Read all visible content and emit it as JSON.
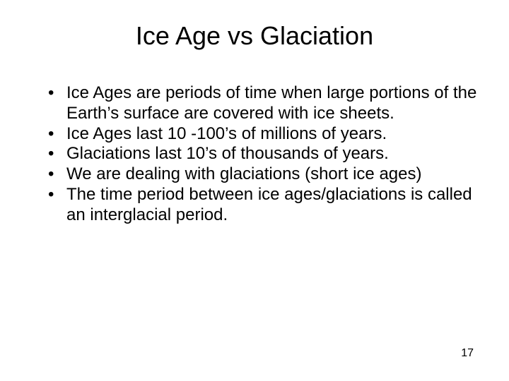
{
  "slide": {
    "title": "Ice Age vs Glaciation",
    "bullets": [
      "Ice Ages are periods of time when large portions of the Earth’s surface are covered with ice sheets.",
      "Ice Ages last 10 -100’s of millions of years.",
      "Glaciations last 10’s of thousands of years.",
      "We are dealing with glaciations (short ice ages)",
      "The time period between ice ages/glaciations is called an interglacial period."
    ],
    "page_number": "17",
    "colors": {
      "background": "#ffffff",
      "text": "#000000"
    },
    "typography": {
      "title_fontsize": 36,
      "body_fontsize": 24,
      "pagenum_fontsize": 16,
      "font_family": "Arial"
    }
  }
}
